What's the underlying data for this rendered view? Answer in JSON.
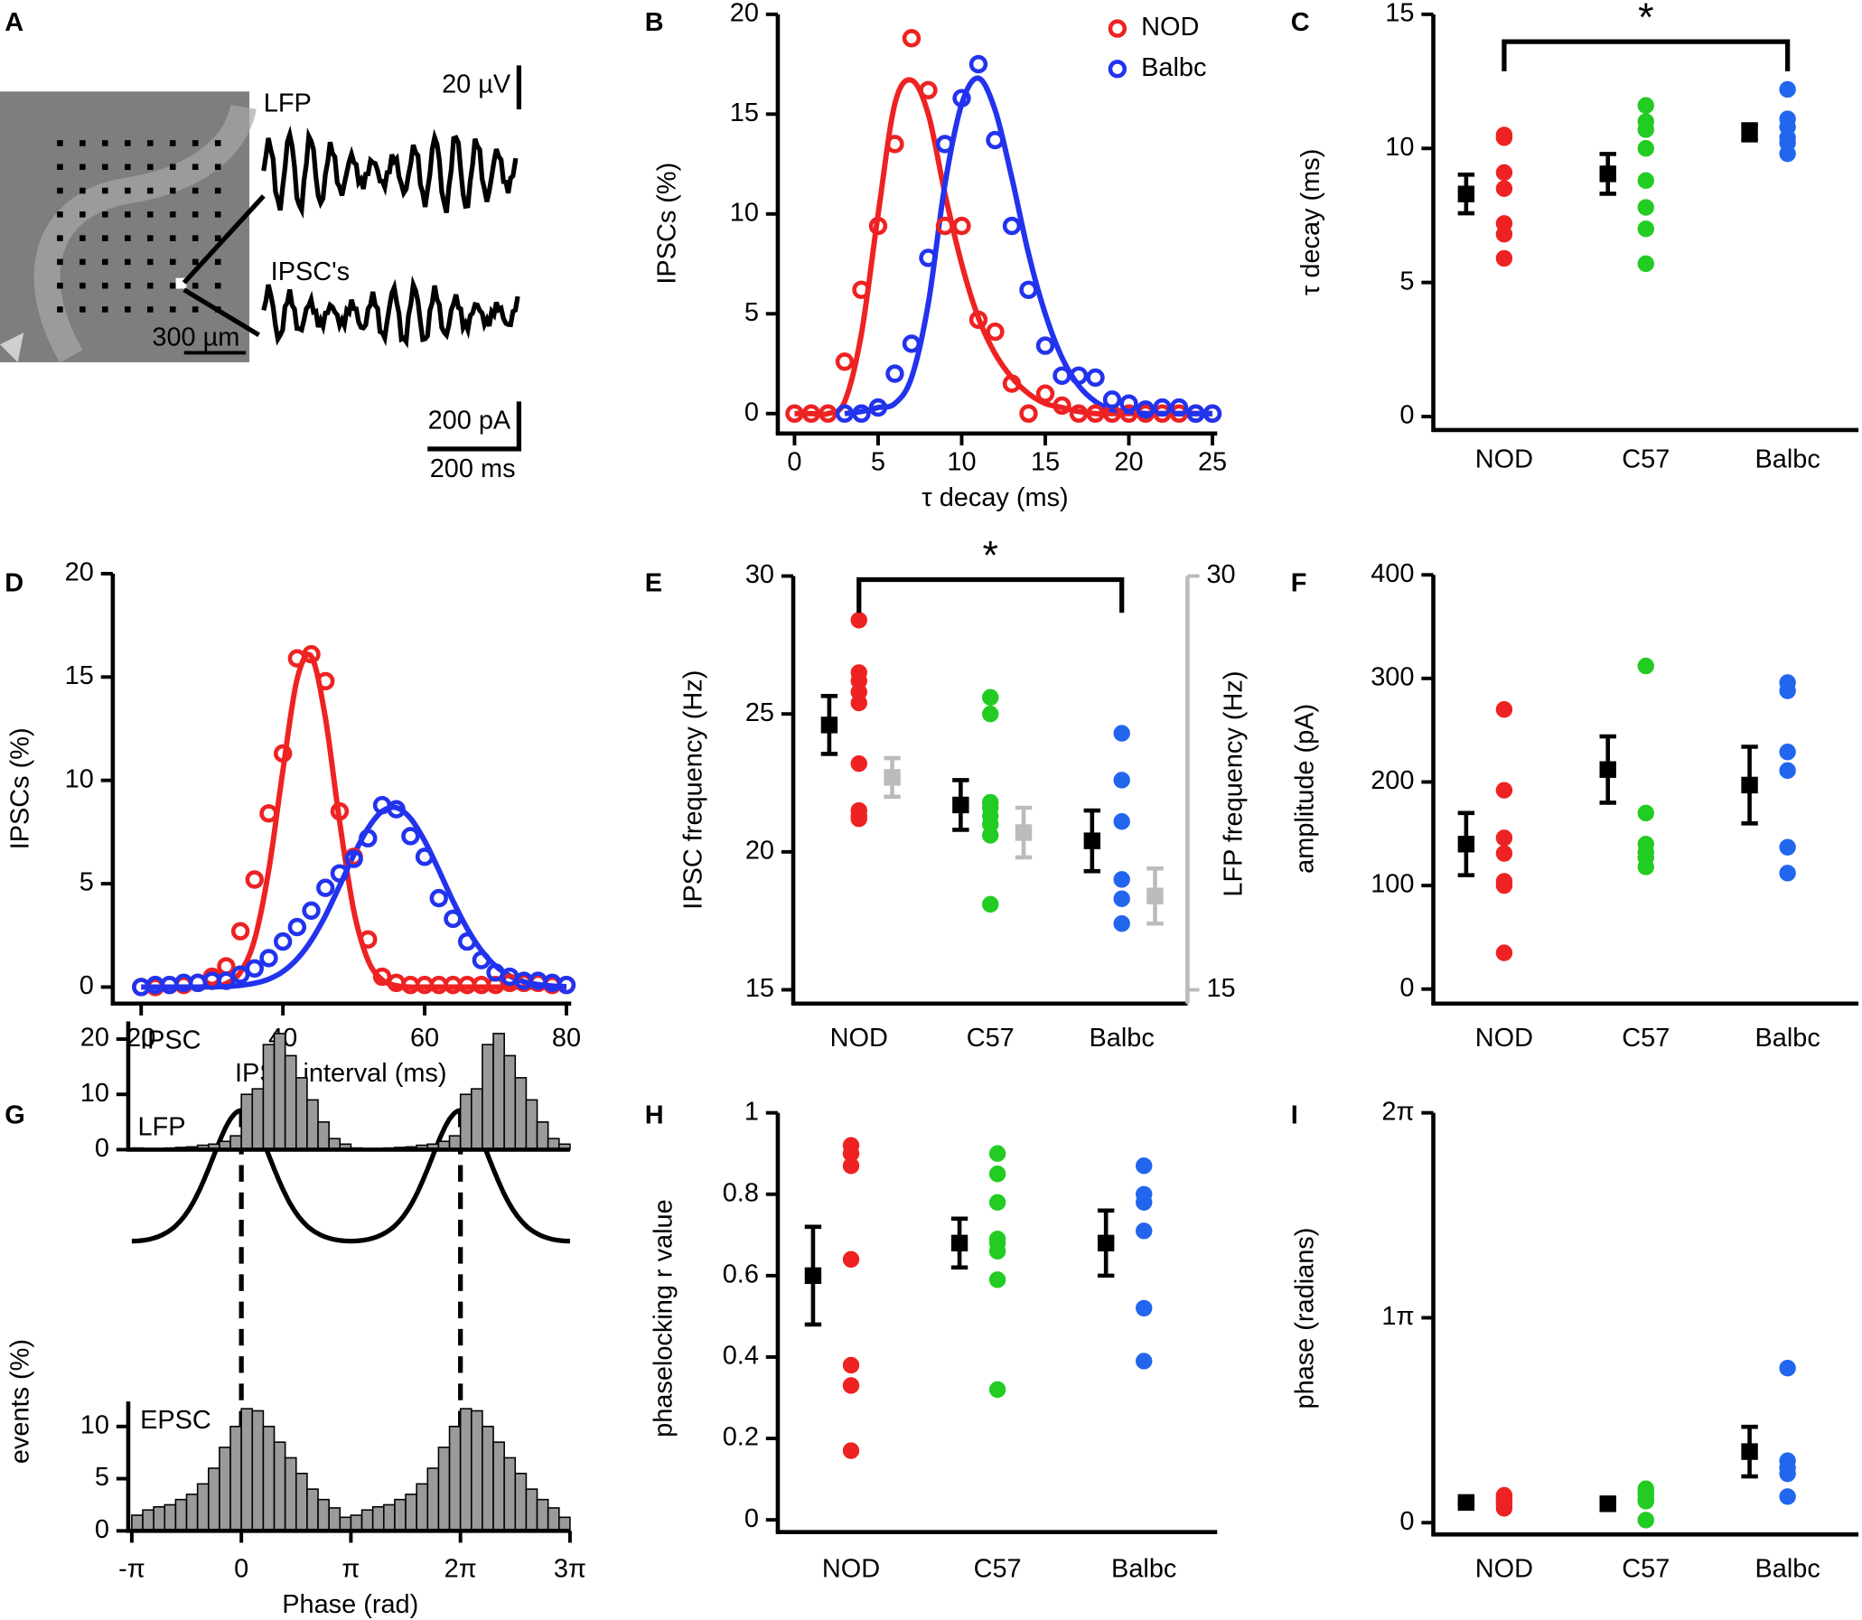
{
  "panel_a": {
    "label": "A",
    "lfp": "LFP",
    "ipsc": "IPSC's",
    "scale_um": "300 µm",
    "scale_uv": "20 µV",
    "scale_pa": "200 pA",
    "scale_ms": "200 ms"
  },
  "chart_data": [
    {
      "panel": "B",
      "type": "line",
      "xlabel": "τ decay (ms)",
      "ylabel": "IPSCs (%)",
      "legend": "upper right",
      "x": [
        0,
        1,
        2,
        3,
        4,
        5,
        6,
        7,
        8,
        9,
        10,
        11,
        12,
        13,
        14,
        15,
        16,
        17,
        18,
        19,
        20,
        21,
        22,
        23,
        24,
        25
      ],
      "xlim": [
        -1,
        25
      ],
      "xticks": [
        0,
        5,
        10,
        15,
        20,
        25
      ],
      "ylim": [
        -1,
        20
      ],
      "yticks": [
        0,
        5,
        10,
        15,
        20
      ],
      "series": [
        {
          "name": "NOD",
          "color": "#ee2222",
          "values": [
            0,
            0,
            0,
            2.6,
            6.2,
            9.4,
            13.5,
            18.8,
            16.2,
            9.4,
            9.4,
            4.7,
            4.1,
            1.5,
            0,
            1,
            0.4,
            0,
            0,
            0,
            0,
            0,
            0,
            0,
            0,
            0
          ],
          "fit": [
            0,
            0,
            0,
            0.6,
            4,
            10,
            15.5,
            16.7,
            15,
            11,
            7.5,
            4.8,
            3,
            1.8,
            1,
            0.5,
            0.3,
            0.1,
            0,
            0,
            0,
            0,
            0,
            0,
            0,
            0
          ]
        },
        {
          "name": "Balbc",
          "color": "#2233ee",
          "values": [
            null,
            null,
            null,
            0,
            0,
            0.3,
            2,
            3.5,
            7.8,
            13.5,
            15.8,
            17.5,
            13.7,
            9.4,
            6.2,
            3.4,
            1.9,
            1.9,
            1.8,
            0.7,
            0.5,
            0.2,
            0.3,
            0.3,
            0,
            0
          ],
          "fit": [
            null,
            null,
            null,
            0,
            0.1,
            0.3,
            0.5,
            1.8,
            5.5,
            11.5,
            15.5,
            16.8,
            15.2,
            11.8,
            8,
            5,
            2.8,
            1.4,
            0.6,
            0.2,
            0.1,
            0,
            0,
            0,
            0,
            0
          ]
        }
      ]
    },
    {
      "panel": "C",
      "type": "strip",
      "ylabel": "τ decay (ms)",
      "categories": [
        "NOD",
        "C57",
        "Balbc"
      ],
      "ylim": [
        -0.5,
        15
      ],
      "yticks": [
        0,
        5,
        10,
        15
      ],
      "colors": [
        "#ee2222",
        "#22cc22",
        "#2266ee"
      ],
      "points": [
        [
          10.5,
          10.4,
          9.1,
          8.5,
          7.2,
          6.8,
          5.9
        ],
        [
          11.6,
          11.0,
          10.7,
          10.0,
          8.8,
          7.8,
          7.0,
          5.7
        ],
        [
          12.2,
          11.1,
          10.8,
          10.4,
          10.2,
          9.8
        ]
      ],
      "series": [
        {
          "axis": "y",
          "color": "#000000",
          "means": [
            8.3,
            9.05,
            10.6
          ],
          "errors": [
            0.72,
            0.74,
            0.3
          ]
        }
      ],
      "brackets": [
        {
          "from": "NOD",
          "to": "Balbc",
          "label": "*"
        }
      ]
    },
    {
      "panel": "D",
      "type": "line",
      "xlabel": "IPSC interval (ms)",
      "ylabel": "IPSCs (%)",
      "x": [
        20,
        22,
        24,
        26,
        28,
        30,
        32,
        34,
        36,
        38,
        40,
        42,
        44,
        46,
        48,
        50,
        52,
        54,
        56,
        58,
        60,
        62,
        64,
        66,
        68,
        70,
        72,
        74,
        76,
        78,
        80
      ],
      "xlim": [
        16,
        80
      ],
      "xticks": [
        20,
        40,
        60,
        80
      ],
      "ylim": [
        -0.8,
        20
      ],
      "yticks": [
        0,
        5,
        10,
        15,
        20
      ],
      "series": [
        {
          "color": "#ee2222",
          "values": [
            0,
            0,
            0.1,
            0.1,
            0.2,
            0.5,
            1.0,
            2.7,
            5.2,
            8.4,
            11.3,
            15.9,
            16.1,
            14.8,
            8.5,
            6.3,
            2.3,
            0.5,
            0.2,
            0.1,
            0.1,
            0.1,
            0.1,
            0.1,
            0.1,
            0.1,
            0.2,
            0.2,
            0.2,
            0.1,
            0.1
          ],
          "fit": [
            0,
            0,
            0,
            0,
            0,
            0.03,
            0.17,
            0.71,
            2.3,
            5.65,
            10.5,
            14.9,
            16.0,
            13.0,
            8.0,
            3.7,
            1.3,
            0.35,
            0.07,
            0,
            0,
            0,
            0,
            0,
            0,
            0,
            0,
            0,
            0,
            0,
            0
          ]
        },
        {
          "color": "#2233ee",
          "values": [
            0,
            0.1,
            0.1,
            0.2,
            0.2,
            0.3,
            0.3,
            0.6,
            0.9,
            1.4,
            2.2,
            2.9,
            3.7,
            4.8,
            5.5,
            6.2,
            7.2,
            8.8,
            8.6,
            7.3,
            6.3,
            4.3,
            3.3,
            2.2,
            1.3,
            0.7,
            0.5,
            0.3,
            0.3,
            0.2,
            0.1
          ],
          "fit": [
            0,
            0,
            0,
            0,
            0,
            0.01,
            0.03,
            0.08,
            0.18,
            0.38,
            0.75,
            1.36,
            2.25,
            3.46,
            4.9,
            6.39,
            7.68,
            8.5,
            8.68,
            8.16,
            7.07,
            5.65,
            4.16,
            2.83,
            1.77,
            1.02,
            0.54,
            0.26,
            0.12,
            0.05,
            0.02
          ]
        }
      ]
    },
    {
      "panel": "E",
      "type": "strip",
      "ylabel": "IPSC frequency (Hz)",
      "y2label": "LFP frequency (Hz)",
      "categories": [
        "NOD",
        "C57",
        "Balbc"
      ],
      "ylim": [
        14.5,
        30
      ],
      "yticks": [
        15,
        20,
        25,
        30
      ],
      "y2lim": [
        14.5,
        30
      ],
      "y2ticks": [
        15,
        30
      ],
      "y2color": "#bbbbbb",
      "colors": [
        "#ee2222",
        "#22cc22",
        "#2266ee"
      ],
      "points": [
        [
          28.4,
          26.5,
          26.2,
          25.8,
          25.4,
          23.2,
          21.5,
          21.3,
          21.2
        ],
        [
          25.6,
          25.0,
          21.8,
          21.6,
          21.3,
          21.0,
          20.6,
          18.1
        ],
        [
          24.3,
          22.6,
          21.1,
          19.0,
          18.3,
          17.4
        ]
      ],
      "series": [
        {
          "axis": "y",
          "color": "#000000",
          "means": [
            24.6,
            21.7,
            20.4
          ],
          "errors": [
            1.05,
            0.9,
            1.1
          ]
        },
        {
          "axis": "y2",
          "color": "#bbbbbb",
          "means": [
            22.7,
            20.7,
            18.4
          ],
          "errors": [
            0.7,
            0.9,
            1.0
          ]
        }
      ],
      "brackets": [
        {
          "from": "NOD",
          "to": "Balbc",
          "label": "*"
        }
      ]
    },
    {
      "panel": "F",
      "type": "strip",
      "ylabel": "amplitude (pA)",
      "categories": [
        "NOD",
        "C57",
        "Balbc"
      ],
      "ylim": [
        -14,
        400
      ],
      "yticks": [
        0,
        100,
        200,
        300,
        400
      ],
      "colors": [
        "#ee2222",
        "#22cc22",
        "#2266ee"
      ],
      "points": [
        [
          270,
          192,
          146,
          131,
          104,
          100,
          35
        ],
        [
          312,
          170,
          140,
          132,
          127,
          118
        ],
        [
          296,
          288,
          229,
          211,
          137,
          112
        ]
      ],
      "series": [
        {
          "axis": "y",
          "color": "#000000",
          "means": [
            140,
            212,
            197
          ],
          "errors": [
            30,
            32,
            37
          ]
        }
      ]
    },
    {
      "panel": "G",
      "type": "phase_histograms",
      "xlabel": "Phase (rad)",
      "ylabel": "events (%)",
      "trace_label": "LFP",
      "xlim": [
        -3.1416,
        9.4248
      ],
      "xticks": [
        {
          "value": -3.1416,
          "label": "-π"
        },
        0,
        {
          "value": 3.1416,
          "label": "π"
        },
        {
          "value": 6.2832,
          "label": "2π"
        },
        {
          "value": 9.4248,
          "label": "3π"
        }
      ],
      "bins": [
        -3.1416,
        -2.8274,
        -2.5133,
        -2.1991,
        -1.885,
        -1.5708,
        -1.2566,
        -0.9425,
        -0.6283,
        -0.3142,
        0,
        0.3142,
        0.6283,
        0.9425,
        1.2566,
        1.5708,
        1.885,
        2.1991,
        2.5133,
        2.8274,
        3.1416,
        3.4558,
        3.7699,
        4.0841,
        4.3982,
        4.7124,
        5.0265,
        5.3407,
        5.6549,
        5.969,
        6.2832,
        6.5973,
        6.9115,
        7.2257,
        7.5398,
        7.854,
        8.1681,
        8.4823,
        8.7965,
        9.1106,
        9.4248
      ],
      "histograms": [
        {
          "name": "IPSC",
          "ylim": [
            0,
            23.2
          ],
          "yticks": [
            0,
            10,
            20
          ],
          "counts": [
            0.3,
            0.2,
            0.2,
            0.3,
            0.4,
            0.5,
            0.8,
            1,
            1.5,
            2.5,
            10,
            11,
            19,
            21,
            17,
            13,
            9,
            5,
            2,
            1,
            0.3,
            0.2,
            0.2,
            0.3,
            0.4,
            0.5,
            0.8,
            1,
            1.5,
            2.5,
            10,
            11,
            19,
            21,
            17,
            13,
            9,
            5,
            2,
            1
          ]
        },
        {
          "name": "EPSC",
          "ylim": [
            0,
            12.4
          ],
          "yticks": [
            0,
            5,
            10
          ],
          "counts": [
            1.5,
            2,
            2.3,
            2.5,
            3,
            3.5,
            4.5,
            6,
            8,
            10,
            11.7,
            11.5,
            10,
            8.5,
            7,
            5.5,
            4,
            3,
            2.2,
            1.3,
            1.5,
            2,
            2.3,
            2.5,
            3,
            3.5,
            4.5,
            6,
            8,
            10,
            11.7,
            11.5,
            10,
            8.5,
            7,
            5.5,
            4,
            3,
            2.2,
            1.3
          ]
        }
      ]
    },
    {
      "panel": "H",
      "type": "strip",
      "ylabel": "phaselocking r value",
      "categories": [
        "NOD",
        "C57",
        "Balbc"
      ],
      "ylim": [
        -0.03,
        1
      ],
      "yticks": [
        0,
        0.2,
        0.4,
        0.6,
        0.8,
        1
      ],
      "colors": [
        "#ee2222",
        "#22cc22",
        "#2266ee"
      ],
      "points": [
        [
          0.92,
          0.9,
          0.87,
          0.64,
          0.38,
          0.33,
          0.17
        ],
        [
          0.9,
          0.85,
          0.78,
          0.69,
          0.68,
          0.66,
          0.59,
          0.32
        ],
        [
          0.87,
          0.8,
          0.78,
          0.71,
          0.52,
          0.39
        ]
      ],
      "series": [
        {
          "axis": "y",
          "color": "#000000",
          "means": [
            0.6,
            0.68,
            0.68
          ],
          "errors": [
            0.12,
            0.06,
            0.08
          ]
        }
      ]
    },
    {
      "panel": "I",
      "type": "strip",
      "ylabel": "phase (radians)",
      "categories": [
        "NOD",
        "C57",
        "Balbc"
      ],
      "ylim": [
        -0.18,
        6.2832
      ],
      "yticks": [
        0,
        {
          "value": 3.1416,
          "label": "1π"
        },
        {
          "value": 6.2832,
          "label": "2π"
        }
      ],
      "colors": [
        "#ee2222",
        "#22cc22",
        "#2266ee"
      ],
      "points": [
        [
          0.42,
          0.38,
          0.35,
          0.32,
          0.28,
          0.22
        ],
        [
          0.52,
          0.47,
          0.42,
          0.36,
          0.33,
          0.04
        ],
        [
          2.37,
          0.95,
          0.84,
          0.75,
          0.4
        ]
      ],
      "series": [
        {
          "axis": "y",
          "color": "#000000",
          "means": [
            0.31,
            0.29,
            1.09
          ],
          "errors": [
            0.03,
            0.04,
            0.38
          ]
        }
      ]
    }
  ]
}
